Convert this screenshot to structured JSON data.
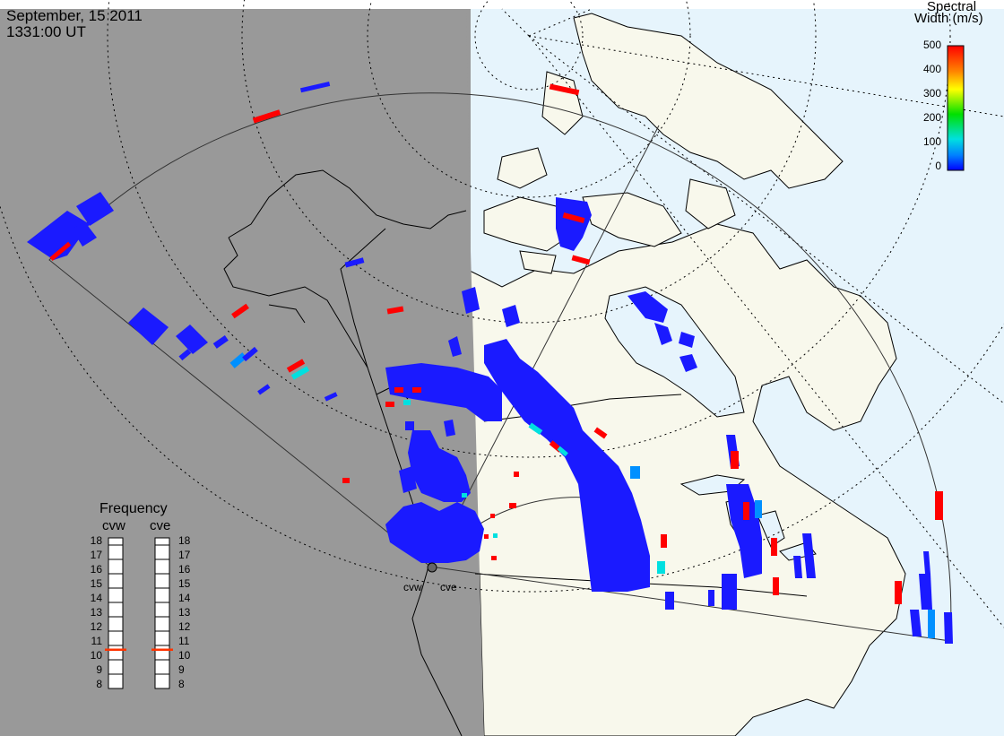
{
  "header": {
    "date": "September, 15 2011",
    "time": "1331:00 UT"
  },
  "color_scale": {
    "title_line1": "Spectral",
    "title_line2": "Width (m/s)",
    "ticks": [
      "500",
      "400",
      "300",
      "200",
      "100",
      "0"
    ],
    "tick_values": [
      500,
      400,
      300,
      200,
      100,
      0
    ],
    "gradient_colors": [
      "#ff0000",
      "#ff8000",
      "#ffff00",
      "#00e000",
      "#00e0e0",
      "#0080ff",
      "#0000ff"
    ]
  },
  "frequency_panel": {
    "title": "Frequency",
    "radars": [
      "cvw",
      "cve"
    ],
    "labels": [
      "18",
      "17",
      "16",
      "15",
      "14",
      "13",
      "12",
      "11",
      "10",
      "9",
      "8"
    ],
    "values": [
      18,
      17,
      16,
      15,
      14,
      13,
      12,
      11,
      10,
      9,
      8
    ],
    "cvw_frequency_mhz": 10.7,
    "cve_frequency_mhz": 10.7,
    "indicator_color": "#ff3300"
  },
  "sites": {
    "west": "cvw",
    "east": "cve"
  },
  "map": {
    "night_color": "#999999",
    "day_land_color": "#f8f8ec",
    "day_ocean_color": "#e6f4fc",
    "coast_color": "#000000",
    "backscatter_colors": {
      "low": "#1a1aff",
      "mid": "#0090ff",
      "cyan": "#00e0e0",
      "high": "#ff0000"
    }
  }
}
